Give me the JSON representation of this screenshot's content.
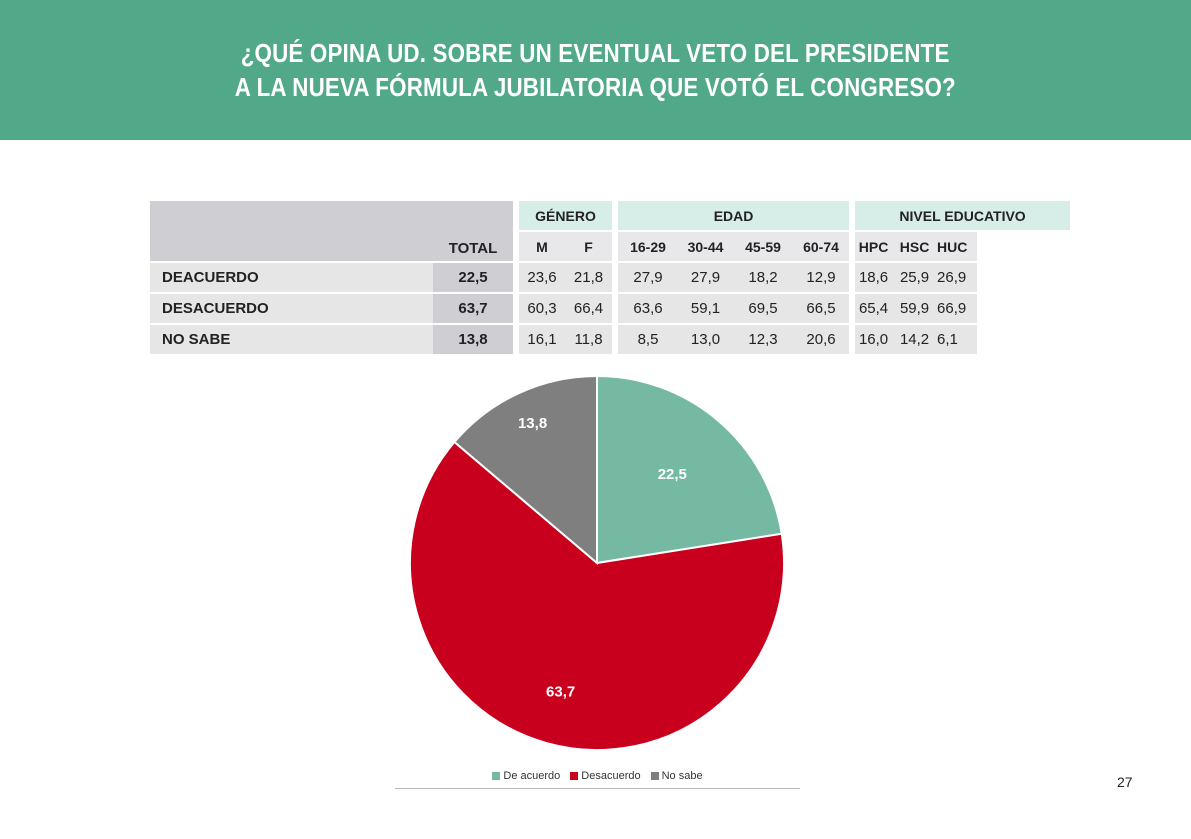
{
  "header": {
    "line1": "¿QUÉ OPINA UD. SOBRE UN EVENTUAL VETO DEL PRESIDENTE",
    "line2": "A LA NUEVA FÓRMULA JUBILATORIA QUE VOTÓ EL CONGRESO?",
    "bg_color": "#52a98a"
  },
  "table": {
    "groups": {
      "genero": "GÉNERO",
      "edad": "EDAD",
      "nivel": "NIVEL EDUCATIVO"
    },
    "total_label": "TOTAL",
    "columns": [
      "M",
      "F",
      "16-29",
      "30-44",
      "45-59",
      "60-74",
      "HPC",
      "HSC",
      "HUC"
    ],
    "rows": [
      {
        "label": "DEACUERDO",
        "total": "22,5",
        "values": [
          "23,6",
          "21,8",
          "27,9",
          "27,9",
          "18,2",
          "12,9",
          "18,6",
          "25,9",
          "26,9"
        ]
      },
      {
        "label": "DESACUERDO",
        "total": "63,7",
        "values": [
          "60,3",
          "66,4",
          "63,6",
          "59,1",
          "69,5",
          "66,5",
          "65,4",
          "59,9",
          "66,9"
        ]
      },
      {
        "label": "NO SABE",
        "total": "13,8",
        "values": [
          "16,1",
          "11,8",
          "8,5",
          "13,0",
          "12,3",
          "20,6",
          "16,0",
          "14,2",
          "6,1"
        ]
      }
    ]
  },
  "chart_data": {
    "type": "pie",
    "categories": [
      "De acuerdo",
      "Desacuerdo",
      "No sabe"
    ],
    "values": [
      22.5,
      63.7,
      13.8
    ],
    "labels": [
      "22,5",
      "63,7",
      "13,8"
    ],
    "colors": [
      "#76b9a3",
      "#c8001e",
      "#7f7f7f"
    ],
    "start": "12 o'clock",
    "direction": "clockwise",
    "legend_position": "bottom"
  },
  "page_number": "27"
}
